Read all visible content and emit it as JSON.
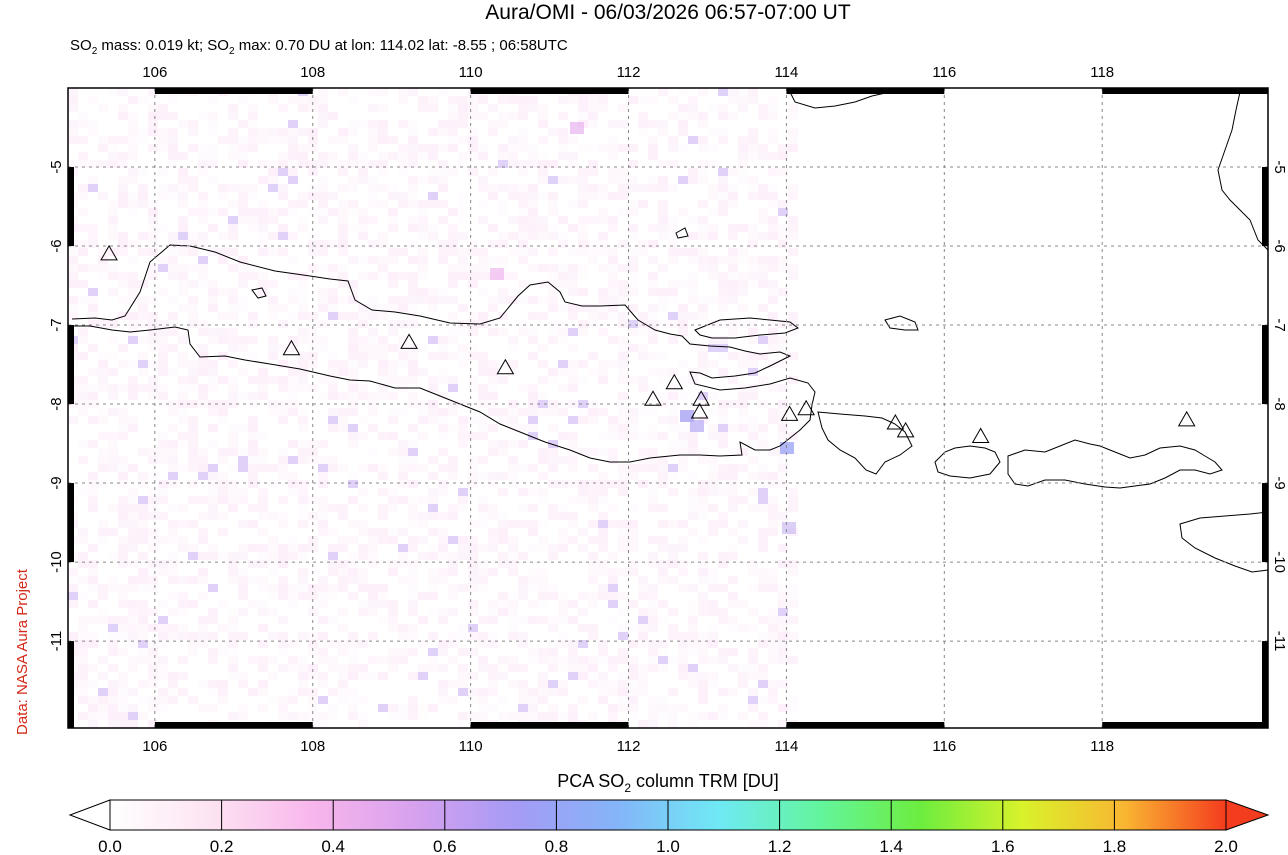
{
  "header": {
    "title": "Aura/OMI - 06/03/2026 06:57-07:00 UT",
    "subtitle_pre": "SO",
    "subtitle_sub": "2",
    "subtitle_mid": " mass: 0.019 kt; SO",
    "subtitle_sub2": "2",
    "subtitle_post": " max: 0.70 DU at lon: 114.02 lat: -8.55 ; 06:58UTC"
  },
  "credit": "Data: NASA Aura Project",
  "map": {
    "lon_range": [
      104.9,
      120.1
    ],
    "lat_range": [
      -12.1,
      -4.0
    ],
    "lon_ticks": [
      "106",
      "108",
      "110",
      "112",
      "114",
      "116",
      "118"
    ],
    "lat_ticks": [
      "-5",
      "-6",
      "-7",
      "-8",
      "-9",
      "-10",
      "-11"
    ],
    "volcanoes": [
      {
        "lon": 105.42,
        "lat": -6.1
      },
      {
        "lon": 107.73,
        "lat": -7.3
      },
      {
        "lon": 109.22,
        "lat": -7.22
      },
      {
        "lon": 110.44,
        "lat": -7.54
      },
      {
        "lon": 112.31,
        "lat": -7.94
      },
      {
        "lon": 112.58,
        "lat": -7.73
      },
      {
        "lon": 112.92,
        "lat": -7.94
      },
      {
        "lon": 112.9,
        "lat": -8.1
      },
      {
        "lon": 114.04,
        "lat": -8.13
      },
      {
        "lon": 114.25,
        "lat": -8.06
      },
      {
        "lon": 115.38,
        "lat": -8.24
      },
      {
        "lon": 115.51,
        "lat": -8.34
      },
      {
        "lon": 116.46,
        "lat": -8.41
      },
      {
        "lon": 119.07,
        "lat": -8.2
      }
    ]
  },
  "colorbar": {
    "label_pre": "PCA SO",
    "label_sub": "2",
    "label_post": " column TRM [DU]",
    "min": 0.0,
    "max": 2.0,
    "ticks": [
      "0.0",
      "0.2",
      "0.4",
      "0.6",
      "0.8",
      "1.0",
      "1.2",
      "1.4",
      "1.6",
      "1.8",
      "2.0"
    ],
    "colors": [
      "#ffffff",
      "#fde3f2",
      "#f8b6ec",
      "#d7a1ee",
      "#a59bf5",
      "#84b5f8",
      "#6fe9f5",
      "#63f59d",
      "#6ded3e",
      "#d9f22a",
      "#f9b632",
      "#f43c1e"
    ]
  }
}
